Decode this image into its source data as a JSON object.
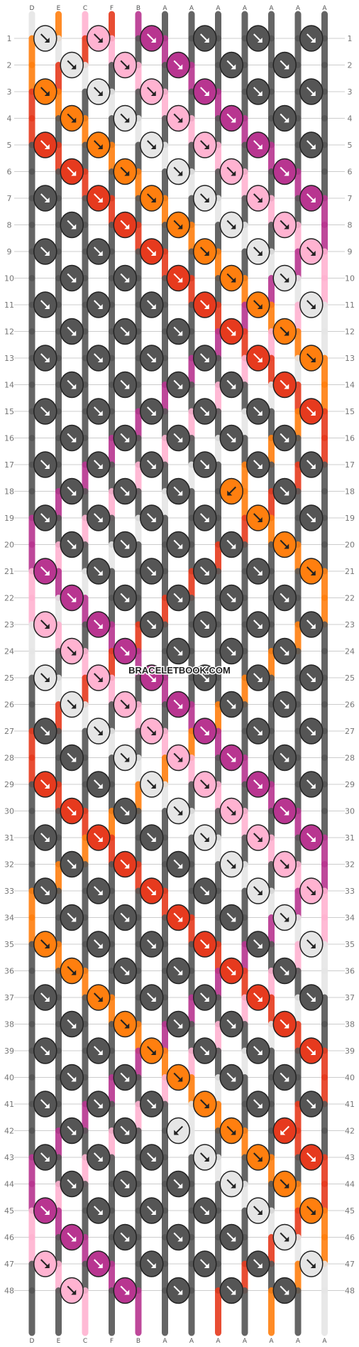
{
  "watermark": "BRACELETBOOK.COM",
  "row_count": 48,
  "colors": {
    "D": "#e6e6e6",
    "E": "#ff7f0f",
    "C": "#ffb3d1",
    "F": "#e63a1e",
    "B": "#b83590",
    "A": "#555555",
    "grid_line": "#cccccc",
    "knot_outline": "#222222"
  },
  "strands_top": [
    "D",
    "E",
    "C",
    "F",
    "B",
    "A",
    "A",
    "A",
    "A",
    "A",
    "A",
    "A"
  ],
  "strands_bottom": [
    "D",
    "E",
    "C",
    "F",
    "B",
    "A",
    "A",
    "A",
    "A",
    "A",
    "A",
    "A"
  ],
  "knot_icons": [
    "arrow-down-right-icon",
    "arrow-down-left-icon"
  ],
  "special_knots": [
    {
      "row": 18,
      "knot": 3,
      "dir": "left"
    },
    {
      "row": 42,
      "knot": 2,
      "dir": "left"
    },
    {
      "row": 42,
      "knot": 4,
      "dir": "left"
    }
  ]
}
